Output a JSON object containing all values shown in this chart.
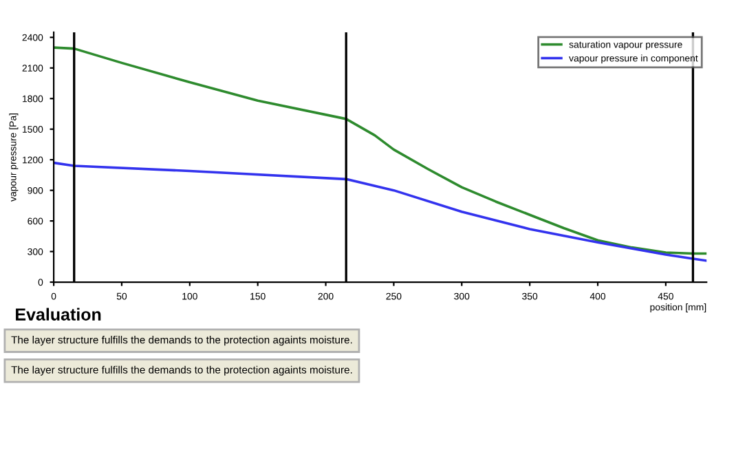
{
  "chart_data": {
    "type": "line",
    "xlabel": "position [mm]",
    "ylabel": "vapour pressure [Pa]",
    "xlim": [
      0,
      480
    ],
    "ylim": [
      0,
      2450
    ],
    "xticks": [
      0,
      50,
      100,
      150,
      200,
      250,
      300,
      350,
      400,
      450
    ],
    "yticks": [
      0,
      300,
      600,
      900,
      1200,
      1500,
      1800,
      2100,
      2400
    ],
    "grid": false,
    "legend": "top right",
    "marker": "none",
    "line_style": "solid",
    "series": [
      {
        "name": "saturation vapour pressure",
        "color": "#2e8b2e",
        "x": [
          0,
          15,
          50,
          100,
          150,
          215,
          236,
          250,
          275,
          300,
          325,
          350,
          375,
          400,
          425,
          450,
          470,
          480
        ],
        "values": [
          2300,
          2290,
          2150,
          1960,
          1780,
          1600,
          1440,
          1300,
          1110,
          930,
          790,
          660,
          530,
          410,
          340,
          290,
          280,
          280
        ]
      },
      {
        "name": "vapour pressure in component",
        "color": "#3333ee",
        "x": [
          0,
          15,
          100,
          215,
          250,
          300,
          350,
          400,
          450,
          470,
          480
        ],
        "values": [
          1170,
          1140,
          1090,
          1010,
          900,
          690,
          520,
          390,
          270,
          230,
          210
        ]
      }
    ],
    "ref_lines": [
      {
        "axis": "x",
        "value": 15,
        "color": "#000000"
      },
      {
        "axis": "x",
        "value": 215,
        "color": "#000000"
      },
      {
        "axis": "x",
        "value": 470,
        "color": "#000000"
      }
    ],
    "annotations": [
      "Evaluation",
      "The layer structure fulfills the demands to the protection againts moisture.",
      "The layer structure fulfills the demands to the protection againts moisture."
    ]
  }
}
